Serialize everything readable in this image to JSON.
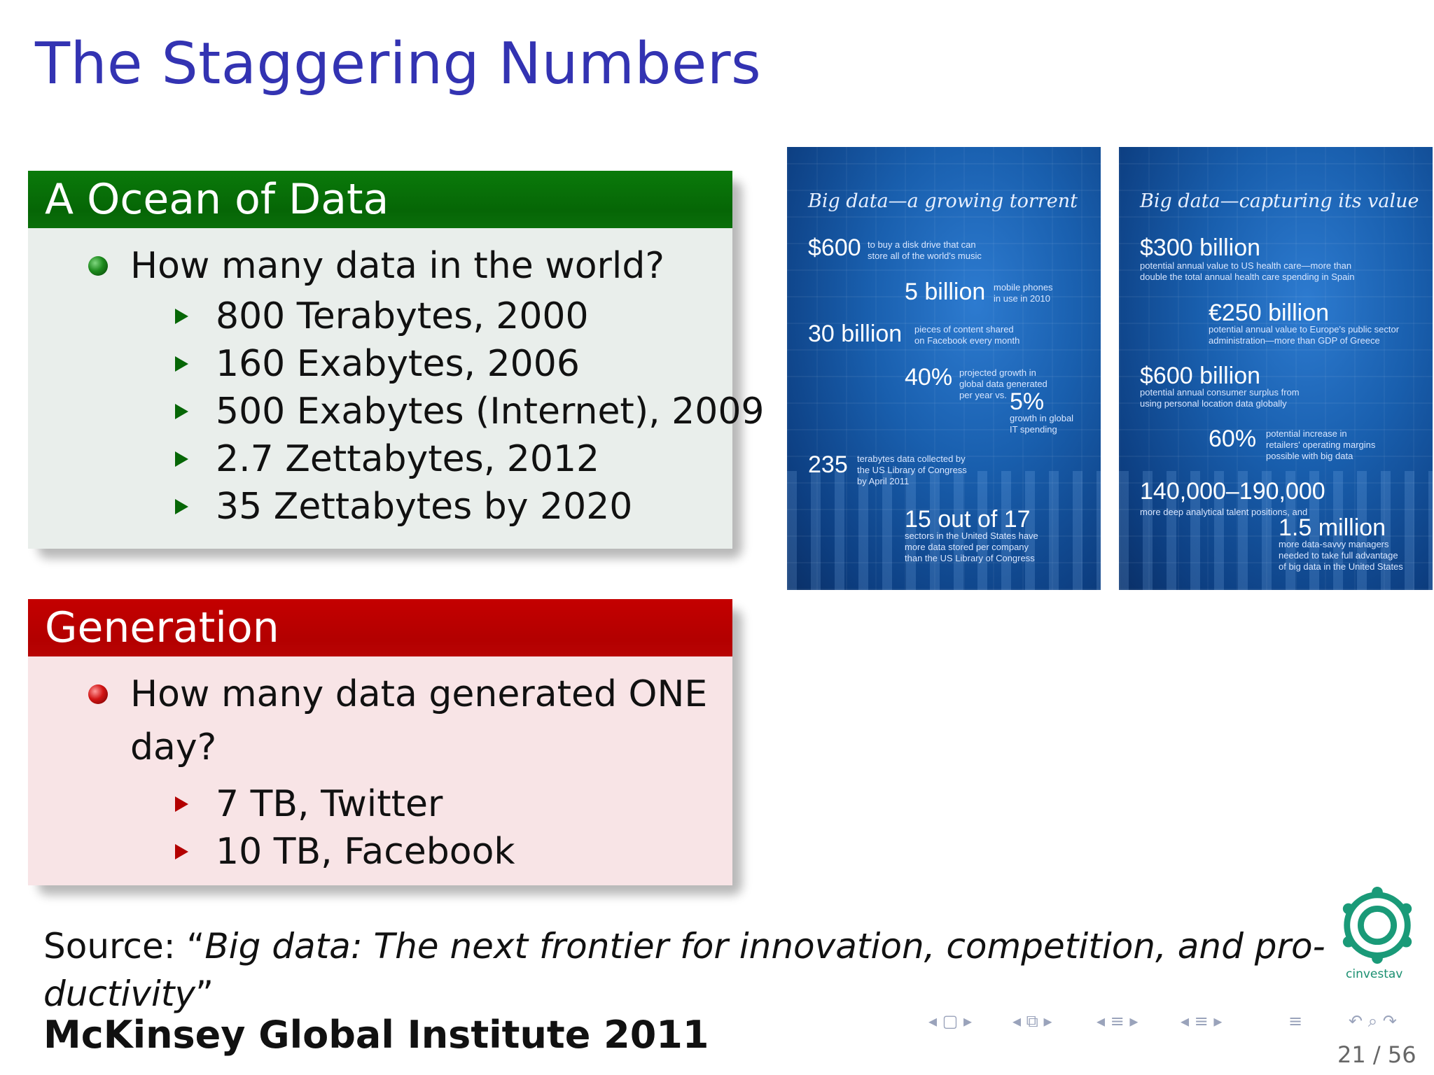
{
  "title": "The Staggering Numbers",
  "block_ocean": {
    "header": "A Ocean of Data",
    "question": "How many data in the world?",
    "items": [
      "800 Terabytes, 2000",
      "160 Exabytes, 2006",
      "500 Exabytes (Internet), 2009",
      "2.7 Zettabytes, 2012",
      "35 Zettabytes by 2020"
    ]
  },
  "block_generation": {
    "header": "Generation",
    "question_line1": "How many data generated ONE",
    "question_line2": "day?",
    "items": [
      "7 TB, Twitter",
      "10 TB, Facebook"
    ]
  },
  "image_left": {
    "title": "Big data—a growing torrent",
    "stats": [
      {
        "value": "$600",
        "desc": [
          "to buy a disk drive that can",
          "store all of the world's music"
        ]
      },
      {
        "value": "5 billion",
        "desc": [
          "mobile phones",
          "in use in 2010"
        ]
      },
      {
        "value": "30 billion",
        "desc": [
          "pieces of content shared",
          "on Facebook every month"
        ]
      },
      {
        "value": "40%",
        "desc": [
          "projected growth in",
          "global data generated",
          "per year vs."
        ]
      },
      {
        "value": "5%",
        "desc": [
          "growth in global",
          "IT spending"
        ]
      },
      {
        "value": "235",
        "desc": [
          "terabytes data collected by",
          "the US Library of Congress",
          "by April 2011"
        ]
      },
      {
        "value": "15 out of 17",
        "desc": [
          "sectors in the United States have",
          "more data stored per company",
          "than the US Library of Congress"
        ]
      }
    ]
  },
  "image_right": {
    "title": "Big data—capturing its value",
    "stats": [
      {
        "value": "$300 billion",
        "desc": [
          "potential annual value to US health care—more than",
          "double the total annual health care spending in Spain"
        ]
      },
      {
        "value": "€250 billion",
        "desc": [
          "potential annual value to Europe's public sector",
          "administration—more than GDP of Greece"
        ]
      },
      {
        "value": "$600 billion",
        "desc": [
          "potential annual consumer surplus from",
          "using personal location data globally"
        ]
      },
      {
        "value": "60%",
        "desc": [
          "potential increase in",
          "retailers' operating margins",
          "possible with big data"
        ]
      },
      {
        "value": "140,000–190,000",
        "desc": [
          "more deep analytical talent positions, and"
        ]
      },
      {
        "value": "1.5 million",
        "desc": [
          "more data-savvy managers",
          "needed to take full advantage",
          "of big data in the United States"
        ]
      }
    ]
  },
  "source": {
    "prefix": "Source: “",
    "italic_line1": "Big data: The next frontier for innovation, competition, and pro-",
    "italic_line2": "ductivity",
    "suffix": "”",
    "author": "McKinsey Global Institute 2011"
  },
  "logo": {
    "label": "cinvestav"
  },
  "pager": "21 / 56",
  "colors": {
    "title": "#3333b2",
    "green_header": "#066606",
    "red_header": "#b30000"
  }
}
